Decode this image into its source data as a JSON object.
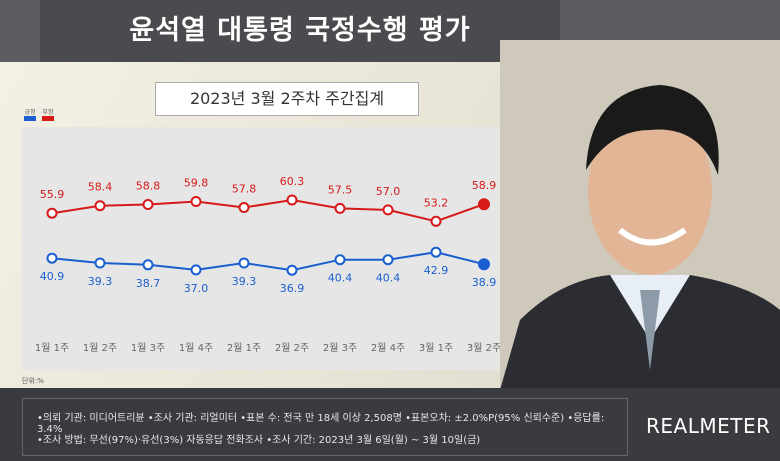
{
  "title": "윤석열 대통령 국정수행 평가",
  "subtitle": "2023년 3월 2주차 주간집계",
  "unit": "단위:%",
  "legend": [
    {
      "label": "긍정",
      "color": "#1a5fd0"
    },
    {
      "label": "부정",
      "color": "#d61a1a"
    }
  ],
  "footer": {
    "line1": "•의뢰 기관: 미디어트리뷴 •조사 기관: 리얼미터 •표본 수: 전국 만 18세 이상 2,508명 •표본오차: ±2.0%P(95% 신뢰수준) •응답률: 3.4%",
    "line2": "•조사 방법: 무선(97%)·유선(3%) 자동응답 전화조사 •조사 기간: 2023년 3월 6일(월) ~ 3월 10일(금)"
  },
  "logo": "REALMETER",
  "chart_data": {
    "type": "line",
    "categories": [
      "1월 1주",
      "1월 2주",
      "1월 3주",
      "1월 4주",
      "2월 1주",
      "2월 2주",
      "2월 3주",
      "2월 4주",
      "3월 1주",
      "3월 2주"
    ],
    "series": [
      {
        "name": "긍정",
        "color": "#1a5fd0",
        "values": [
          40.9,
          39.3,
          38.7,
          37.0,
          39.3,
          36.9,
          40.4,
          40.4,
          42.9,
          38.9
        ]
      },
      {
        "name": "부정",
        "color": "#d61a1a",
        "values": [
          55.9,
          58.4,
          58.8,
          59.8,
          57.8,
          60.3,
          57.5,
          57.0,
          53.2,
          58.9
        ]
      }
    ],
    "ylim": [
      28,
      70
    ],
    "grid": false,
    "legend_position": "top-left"
  }
}
